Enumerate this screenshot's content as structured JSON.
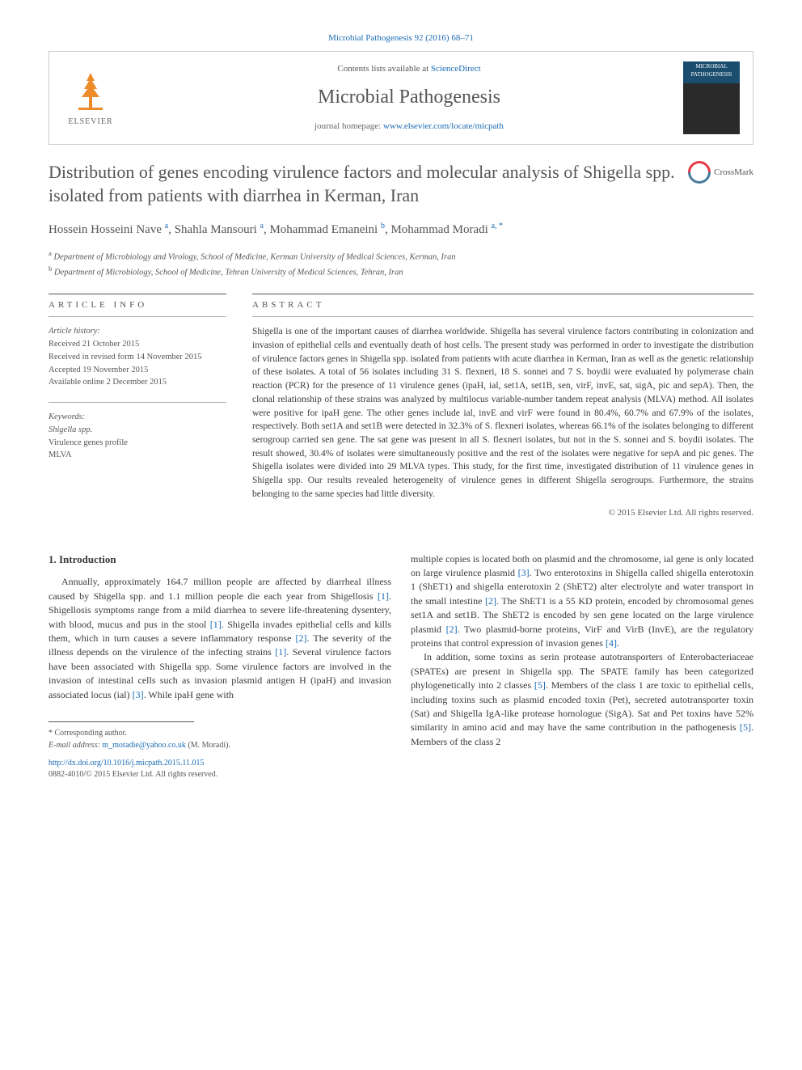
{
  "topRef": {
    "label": "Microbial Pathogenesis 92 (2016) 68–71"
  },
  "header": {
    "publisher": "ELSEVIER",
    "contentsPrefix": "Contents lists available at ",
    "contentsLink": "ScienceDirect",
    "journalName": "Microbial Pathogenesis",
    "homepagePrefix": "journal homepage: ",
    "homepageUrl": "www.elsevier.com/locate/micpath",
    "coverLabel": "MICROBIAL PATHOGENESIS"
  },
  "crossmark": "CrossMark",
  "title": "Distribution of genes encoding virulence factors and molecular analysis of Shigella spp. isolated from patients with diarrhea in Kerman, Iran",
  "authorsHtml": "Hossein Hosseini Nave <sup>a</sup>, Shahla Mansouri <sup>a</sup>, Mohammad Emaneini <sup>b</sup>, Mohammad Moradi <sup>a, *</sup>",
  "affiliations": {
    "a": "Department of Microbiology and Virology, School of Medicine, Kerman University of Medical Sciences, Kerman, Iran",
    "b": "Department of Microbiology, School of Medicine, Tehran University of Medical Sciences, Tehran, Iran"
  },
  "articleInfo": {
    "heading": "ARTICLE INFO",
    "historyLabel": "Article history:",
    "received": "Received 21 October 2015",
    "revised": "Received in revised form 14 November 2015",
    "accepted": "Accepted 19 November 2015",
    "online": "Available online 2 December 2015",
    "keywordsLabel": "Keywords:",
    "kw1": "Shigella spp.",
    "kw2": "Virulence genes profile",
    "kw3": "MLVA"
  },
  "abstract": {
    "heading": "ABSTRACT",
    "text": "Shigella is one of the important causes of diarrhea worldwide. Shigella has several virulence factors contributing in colonization and invasion of epithelial cells and eventually death of host cells. The present study was performed in order to investigate the distribution of virulence factors genes in Shigella spp. isolated from patients with acute diarrhea in Kerman, Iran as well as the genetic relationship of these isolates. A total of 56 isolates including 31 S. flexneri, 18 S. sonnei and 7 S. boydii were evaluated by polymerase chain reaction (PCR) for the presence of 11 virulence genes (ipaH, ial, set1A, set1B, sen, virF, invE, sat, sigA, pic and sepA). Then, the clonal relationship of these strains was analyzed by multilocus variable-number tandem repeat analysis (MLVA) method. All isolates were positive for ipaH gene. The other genes include ial, invE and virF were found in 80.4%, 60.7% and 67.9% of the isolates, respectively. Both set1A and set1B were detected in 32.3% of S. flexneri isolates, whereas 66.1% of the isolates belonging to different serogroup carried sen gene. The sat gene was present in all S. flexneri isolates, but not in the S. sonnei and S. boydii isolates. The result showed, 30.4% of isolates were simultaneously positive and the rest of the isolates were negative for sepA and pic genes. The Shigella isolates were divided into 29 MLVA types. This study, for the first time, investigated distribution of 11 virulence genes in Shigella spp. Our results revealed heterogeneity of virulence genes in different Shigella serogroups. Furthermore, the strains belonging to the same species had little diversity.",
    "copyright": "© 2015 Elsevier Ltd. All rights reserved."
  },
  "intro": {
    "heading": "1. Introduction",
    "p1a": "Annually, approximately 164.7 million people are affected by diarrheal illness caused by Shigella spp. and 1.1 million people die each year from Shigellosis ",
    "c1": "[1]",
    "p1b": ". Shigellosis symptoms range from a mild diarrhea to severe life-threatening dysentery, with blood, mucus and pus in the stool ",
    "c2": "[1]",
    "p1c": ". Shigella invades epithelial cells and kills them, which in turn causes a severe inflammatory response ",
    "c3": "[2]",
    "p1d": ". The severity of the illness depends on the virulence of the infecting strains ",
    "c4": "[1]",
    "p1e": ". Several virulence factors have been associated with Shigella spp. Some virulence factors are involved in the invasion of intestinal cells such as invasion plasmid antigen H (ipaH) and invasion associated locus (ial) ",
    "c5": "[3]",
    "p1f": ". While ipaH gene with",
    "p2a": "multiple copies is located both on plasmid and the chromosome, ial gene is only located on large virulence plasmid ",
    "c6": "[3]",
    "p2b": ". Two enterotoxins in Shigella called shigella enterotoxin 1 (ShET1) and shigella enterotoxin 2 (ShET2) alter electrolyte and water transport in the small intestine ",
    "c7": "[2]",
    "p2c": ". The ShET1 is a 55 KD protein, encoded by chromosomal genes set1A and set1B. The ShET2 is encoded by sen gene located on the large virulence plasmid ",
    "c8": "[2]",
    "p2d": ". Two plasmid-borne proteins, VirF and VirB (InvE), are the regulatory proteins that control expression of invasion genes ",
    "c9": "[4]",
    "p2e": ".",
    "p3a": "In addition, some toxins as serin protease autotransporters of Enterobacteriaceae (SPATEs) are present in Shigella spp. The SPATE family has been categorized phylogenetically into 2 classes ",
    "c10": "[5]",
    "p3b": ". Members of the class 1 are toxic to epithelial cells, including toxins such as plasmid encoded toxin (Pet), secreted autotransporter toxin (Sat) and Shigella IgA-like protease homologue (SigA). Sat and Pet toxins have 52% similarity in amino acid and may have the same contribution in the pathogenesis ",
    "c11": "[5]",
    "p3c": ". Members of the class 2"
  },
  "corresponding": {
    "label": "* Corresponding author.",
    "emailLabel": "E-mail address: ",
    "email": "m_moradie@yahoo.co.uk",
    "person": " (M. Moradi)."
  },
  "doi": {
    "url": "http://dx.doi.org/10.1016/j.micpath.2015.11.015",
    "issn": "0882-4010/© 2015 Elsevier Ltd. All rights reserved."
  }
}
